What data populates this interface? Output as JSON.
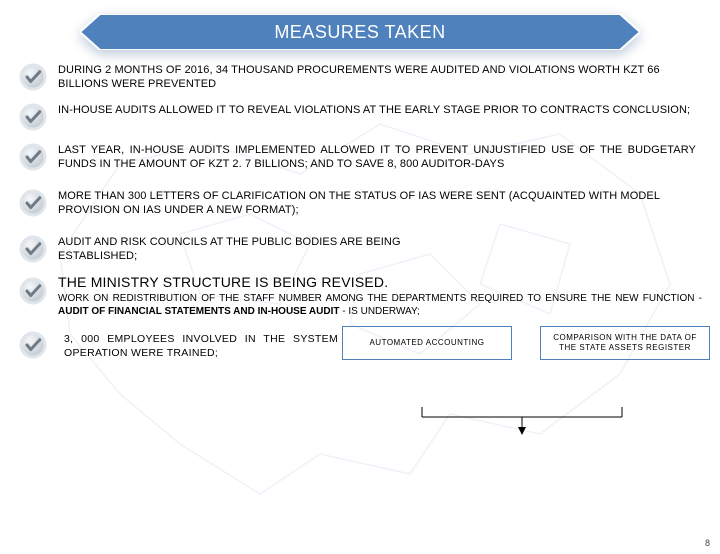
{
  "colors": {
    "banner_fill": "#4f81bd",
    "banner_stroke": "#ffffff",
    "check_outer": "#dfe5eb",
    "check_inner_light": "#f5f7f9",
    "check_inner_dark": "#c7cfd6",
    "check_mark": "#6f7b85",
    "box_border": "#4f81bd",
    "map_stroke": "#6f9bcf"
  },
  "header": {
    "title": "MEASURES TAKEN"
  },
  "items": [
    {
      "text": "DURING 2 MONTHS OF 2016, 34 THOUSAND PROCUREMENTS WERE AUDITED AND VIOLATIONS WORTH KZT 66 BILLIONS WERE PREVENTED",
      "justify": false
    },
    {
      "text": "IN-HOUSE AUDITS ALLOWED IT TO REVEAL VIOLATIONS AT THE EARLY STAGE PRIOR TO CONTRACTS CONCLUSION;",
      "justify": false
    },
    {
      "text": "LAST YEAR, IN-HOUSE AUDITS IMPLEMENTED ALLOWED IT TO PREVENT UNJUSTIFIED USE OF THE BUDGETARY FUNDS IN THE AMOUNT OF KZT 2. 7 BILLIONS; AND TO SAVE 8, 800 AUDITOR-DAYS",
      "justify": true
    },
    {
      "text": "MORE THAN 300 LETTERS OF CLARIFICATION ON THE STATUS OF IAS WERE SENT (ACQUAINTED WITH MODEL PROVISION ON IAS UNDER A NEW FORMAT);",
      "justify": false
    },
    {
      "text": "AUDIT AND RISK COUNCILS AT THE PUBLIC BODIES ARE BEING ESTABLISHED;",
      "justify": false
    }
  ],
  "item6": {
    "heading": "THE MINISTRY STRUCTURE IS BEING REVISED.",
    "body_pre": "WORK ON REDISTRIBUTION OF THE STAFF NUMBER AMONG THE DEPARTMENTS REQUIRED TO ENSURE THE NEW FUNCTION - ",
    "body_bold": "AUDIT OF FINANCIAL STATEMENTS AND IN-HOUSE AUDIT",
    "body_post": " - IS UNDERWAY;"
  },
  "boxes": {
    "a": "AUTOMATED ACCOUNTING",
    "b": "COMPARISON WITH THE DATA OF THE STATE ASSETS REGISTER"
  },
  "item7": {
    "text": "3, 000 EMPLOYEES INVOLVED IN THE SYSTEM OPERATION WERE TRAINED;"
  },
  "page_number": "8"
}
